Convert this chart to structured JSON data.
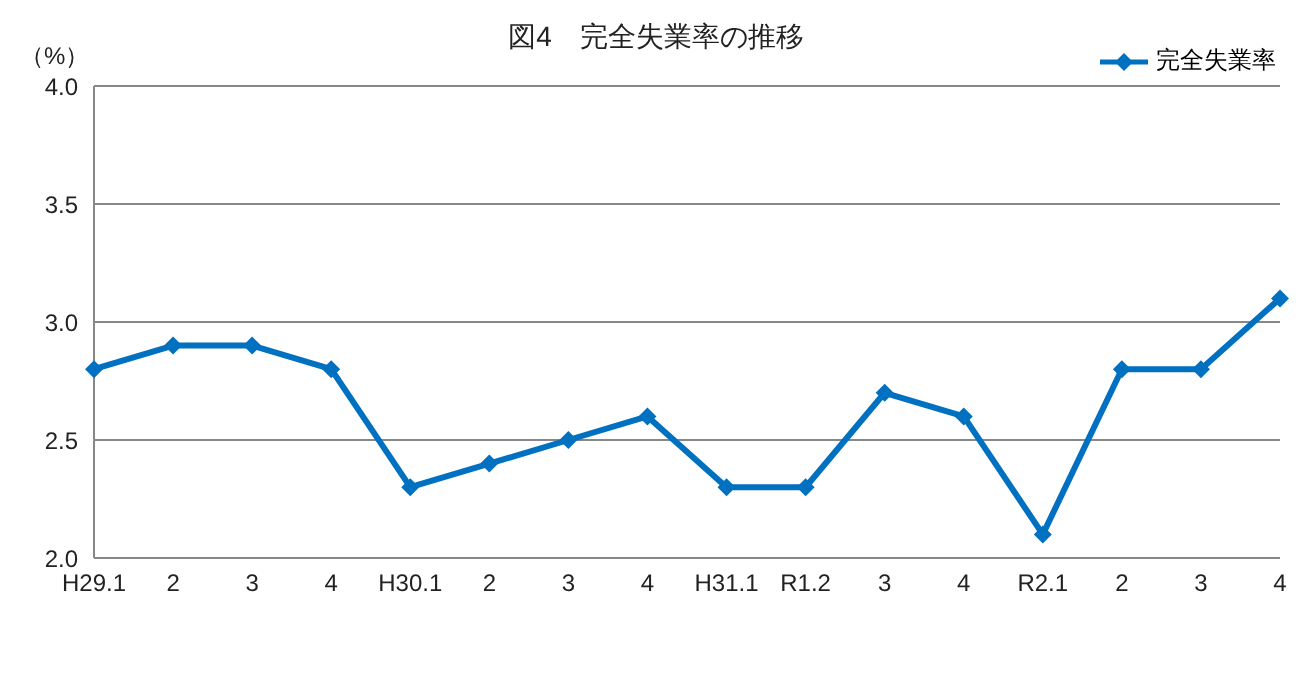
{
  "chart_data": {
    "type": "line",
    "title": "図4　完全失業率の推移",
    "ylabel": "（%）",
    "categories": [
      "H29.1",
      "2",
      "3",
      "4",
      "H30.1",
      "2",
      "3",
      "4",
      "H31.1",
      "R1.2",
      "3",
      "4",
      "R2.1",
      "2",
      "3",
      "4"
    ],
    "series": [
      {
        "name": "完全失業率",
        "color": "#0070c0",
        "values": [
          2.8,
          2.9,
          2.9,
          2.8,
          2.3,
          2.4,
          2.5,
          2.6,
          2.3,
          2.3,
          2.7,
          2.6,
          2.1,
          2.8,
          2.8,
          3.1
        ]
      }
    ],
    "ylim": [
      2.0,
      4.0
    ],
    "yticks": [
      {
        "value": 2.0,
        "label": "2.0"
      },
      {
        "value": 2.5,
        "label": "2.5"
      },
      {
        "value": 3.0,
        "label": "3.0"
      },
      {
        "value": 3.5,
        "label": "3.5"
      },
      {
        "value": 4.0,
        "label": "4.0"
      }
    ],
    "grid": "y",
    "legend": "top right",
    "marker": "diamond",
    "line_style": "solid"
  }
}
